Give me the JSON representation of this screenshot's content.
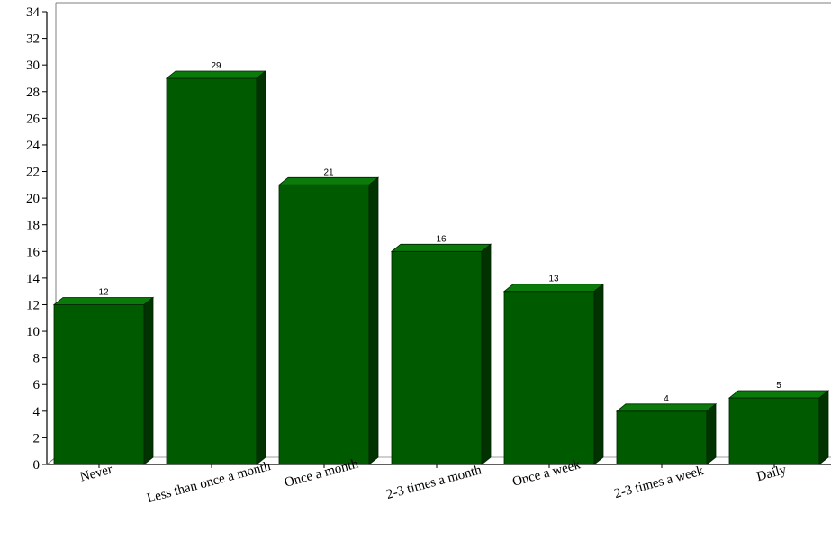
{
  "chart_data": {
    "type": "bar",
    "title": "",
    "xlabel": "",
    "ylabel": "",
    "categories": [
      "Never",
      "Less than once a month",
      "Once a month",
      "2-3 times a month",
      "Once a week",
      "2-3 times a week",
      "Daily"
    ],
    "values": [
      12,
      29,
      21,
      16,
      13,
      4,
      5
    ],
    "data_labels": [
      "12",
      "29",
      "21",
      "16",
      "13",
      "4",
      "5"
    ],
    "ylim": [
      0,
      34
    ],
    "yticks": [
      "0",
      "2",
      "4",
      "6",
      "8",
      "10",
      "12",
      "14",
      "16",
      "18",
      "20",
      "22",
      "24",
      "26",
      "28",
      "30",
      "32",
      "34"
    ],
    "grid": false,
    "legend": "none",
    "bar_style": "3d",
    "colors": {
      "bar_front": "#005a00",
      "bar_top": "#0a7a0a",
      "bar_side": "#003300",
      "axis": "#000000"
    }
  }
}
